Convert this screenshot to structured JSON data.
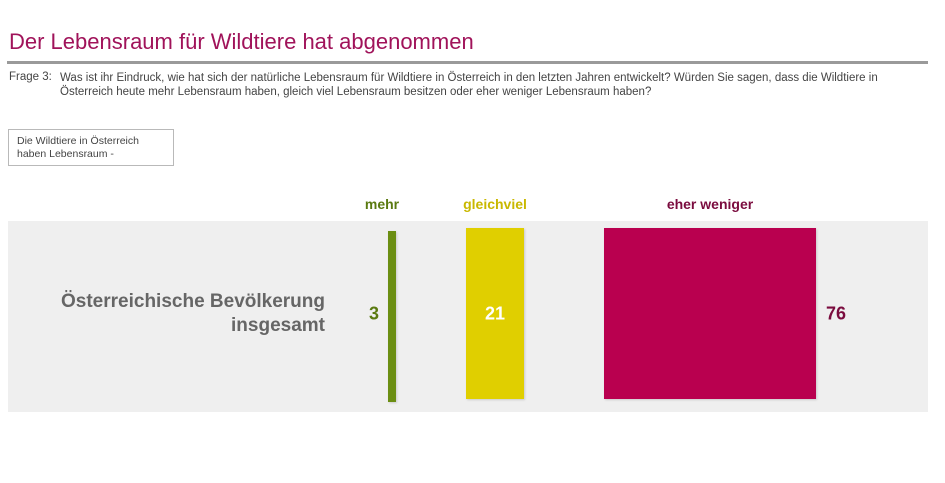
{
  "page": {
    "title": "Der Lebensraum für Wildtiere hat abgenommen",
    "question_label": "Frage  3:",
    "question_text": "Was ist ihr Eindruck, wie hat sich der natürliche Lebensraum für Wildtiere in Österreich in den letzten Jahren entwickelt? Würden Sie sagen, dass die Wildtiere in Österreich heute mehr Lebensraum haben, gleich viel Lebensraum besitzen oder eher weniger Lebensraum haben?",
    "box_text": "Die Wildtiere in Österreich haben Lebensraum -"
  },
  "chart_data": {
    "type": "bar",
    "categories": [
      "Österreichische Bevölkerung insgesamt"
    ],
    "category_lines": [
      "Österreichische Bevölkerung",
      "insgesamt"
    ],
    "unit": "%",
    "series": [
      {
        "name": "mehr",
        "values": [
          3
        ],
        "color": "#6b8e12",
        "label_color": "#5a7a10"
      },
      {
        "name": "gleichviel",
        "values": [
          21
        ],
        "color": "#e0cf00",
        "label_color": "#c9b800"
      },
      {
        "name": "eher weniger",
        "values": [
          76
        ],
        "color": "#b9004f",
        "label_color": "#7a0b3e"
      }
    ],
    "data_label_colors": [
      "#5a7a10",
      "#ffffff",
      "#7a0b3e"
    ],
    "legend_position": "top",
    "grid": false
  }
}
